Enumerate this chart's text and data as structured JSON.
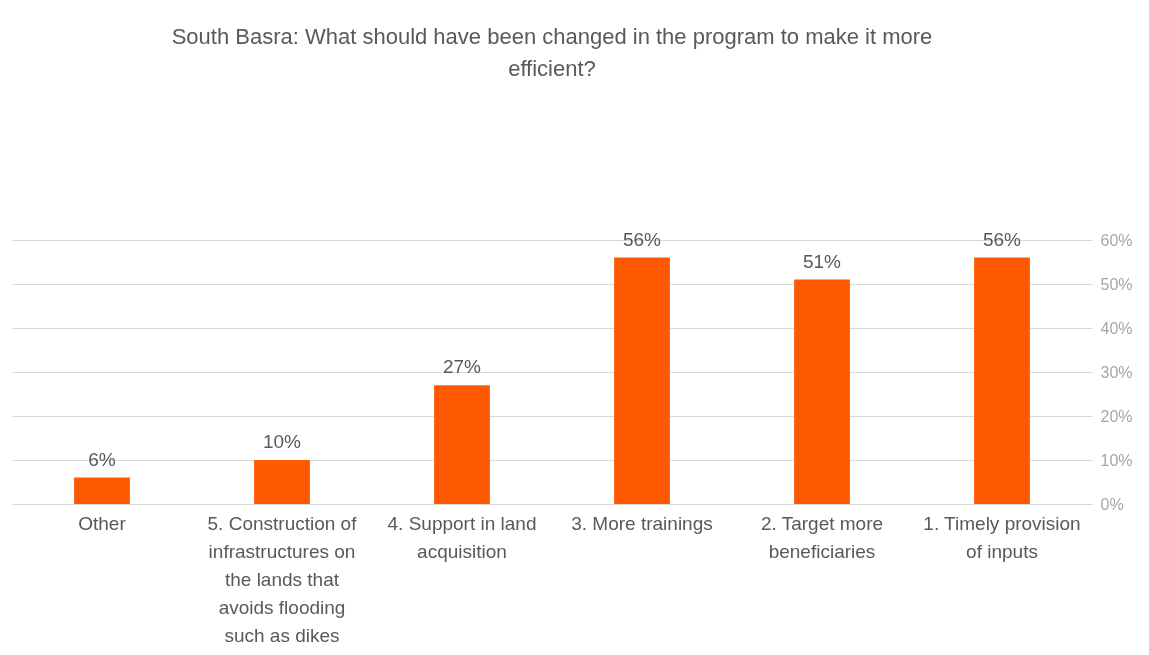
{
  "chart_data": {
    "type": "bar",
    "title": "South Basra: What should have been changed in the program to make it more efficient?",
    "categories": [
      "Other",
      "5. Construction of infrastructures on the lands that avoids flooding such as dikes",
      "4. Support in land acquisition",
      "3. More trainings",
      "2. Target more beneficiaries",
      "1. Timely provision of inputs"
    ],
    "values": [
      6,
      10,
      27,
      56,
      51,
      56
    ],
    "value_labels": [
      "6%",
      "10%",
      "27%",
      "56%",
      "51%",
      "56%"
    ],
    "color": "#ff5a00",
    "ylim": [
      0,
      60
    ],
    "yticks": [
      {
        "value": 0,
        "label": "0%"
      },
      {
        "value": 10,
        "label": "10%"
      },
      {
        "value": 20,
        "label": "20%"
      },
      {
        "value": 30,
        "label": "30%"
      },
      {
        "value": 40,
        "label": "40%"
      },
      {
        "value": 50,
        "label": "50%"
      },
      {
        "value": 60,
        "label": "60%"
      }
    ],
    "grid": "y"
  }
}
